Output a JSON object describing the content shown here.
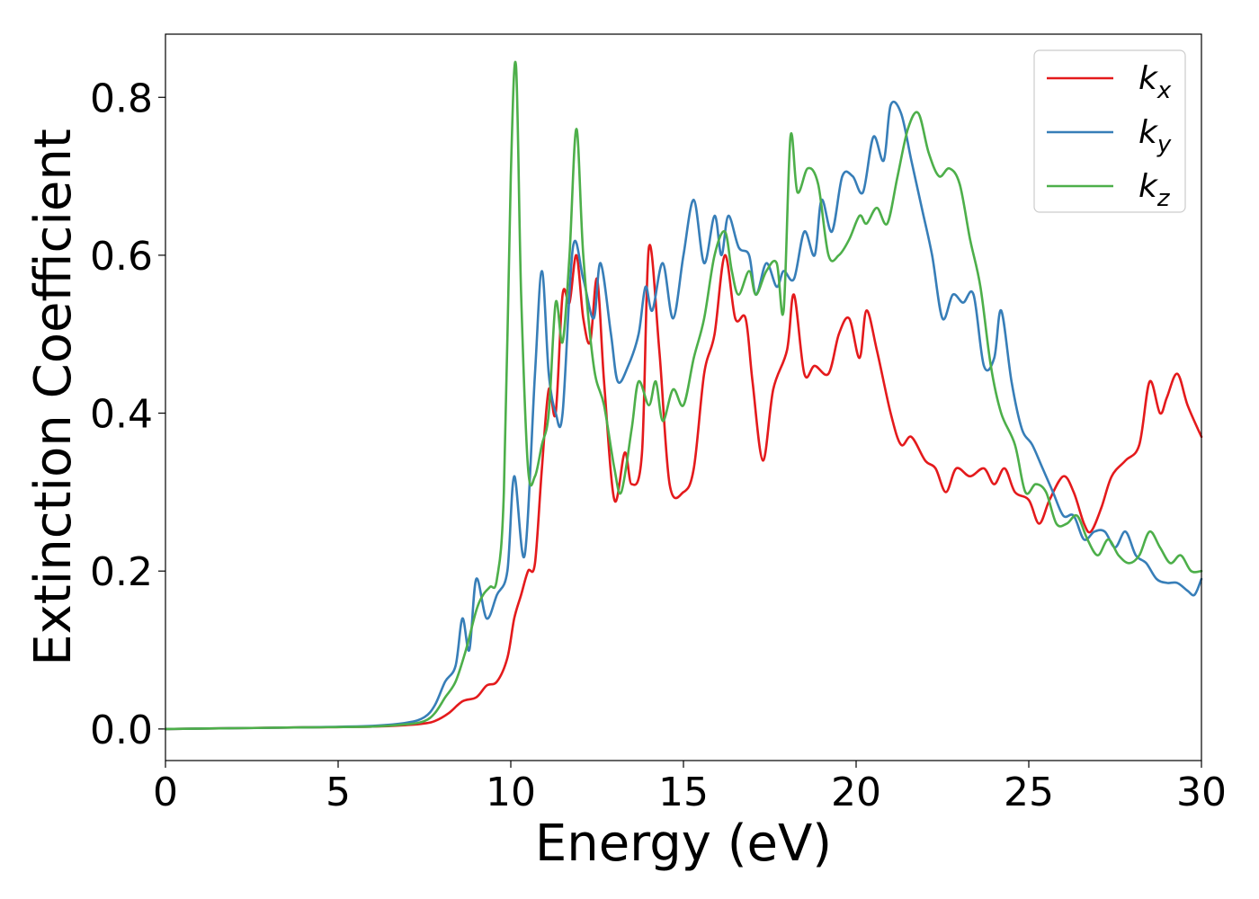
{
  "chart_data": {
    "type": "line",
    "xlabel": "Energy (eV)",
    "ylabel": "Extinction Coefficient",
    "xlim": [
      0,
      30
    ],
    "ylim": [
      -0.04,
      0.88
    ],
    "xticks": [
      0,
      5,
      10,
      15,
      20,
      25,
      30
    ],
    "xtick_labels": [
      "0",
      "5",
      "10",
      "15",
      "20",
      "25",
      "30"
    ],
    "yticks": [
      0.0,
      0.2,
      0.4,
      0.6,
      0.8
    ],
    "ytick_labels": [
      "0.0",
      "0.2",
      "0.4",
      "0.6",
      "0.8"
    ],
    "grid": false,
    "legend_position": "top-right",
    "series": [
      {
        "name": "k_x",
        "label_main": "k",
        "label_sub": "x",
        "color": "#e41a1c",
        "points": [
          [
            0,
            0
          ],
          [
            2,
            0.001
          ],
          [
            4,
            0.002
          ],
          [
            6,
            0.003
          ],
          [
            7,
            0.005
          ],
          [
            7.5,
            0.007
          ],
          [
            7.8,
            0.01
          ],
          [
            8.2,
            0.02
          ],
          [
            8.6,
            0.035
          ],
          [
            9.0,
            0.04
          ],
          [
            9.3,
            0.055
          ],
          [
            9.6,
            0.06
          ],
          [
            9.9,
            0.09
          ],
          [
            10.1,
            0.14
          ],
          [
            10.3,
            0.17
          ],
          [
            10.5,
            0.2
          ],
          [
            10.7,
            0.21
          ],
          [
            10.9,
            0.33
          ],
          [
            11.1,
            0.43
          ],
          [
            11.3,
            0.4
          ],
          [
            11.5,
            0.55
          ],
          [
            11.7,
            0.54
          ],
          [
            11.9,
            0.6
          ],
          [
            12.1,
            0.52
          ],
          [
            12.3,
            0.49
          ],
          [
            12.5,
            0.57
          ],
          [
            12.7,
            0.44
          ],
          [
            13.0,
            0.29
          ],
          [
            13.3,
            0.35
          ],
          [
            13.5,
            0.31
          ],
          [
            13.8,
            0.35
          ],
          [
            14.0,
            0.61
          ],
          [
            14.3,
            0.48
          ],
          [
            14.6,
            0.31
          ],
          [
            15.0,
            0.3
          ],
          [
            15.3,
            0.33
          ],
          [
            15.6,
            0.45
          ],
          [
            15.9,
            0.5
          ],
          [
            16.2,
            0.6
          ],
          [
            16.5,
            0.52
          ],
          [
            16.8,
            0.52
          ],
          [
            17.0,
            0.44
          ],
          [
            17.3,
            0.34
          ],
          [
            17.6,
            0.43
          ],
          [
            18.0,
            0.48
          ],
          [
            18.2,
            0.55
          ],
          [
            18.5,
            0.45
          ],
          [
            18.8,
            0.46
          ],
          [
            19.2,
            0.45
          ],
          [
            19.5,
            0.5
          ],
          [
            19.8,
            0.52
          ],
          [
            20.1,
            0.47
          ],
          [
            20.3,
            0.53
          ],
          [
            20.6,
            0.48
          ],
          [
            21.0,
            0.4
          ],
          [
            21.3,
            0.36
          ],
          [
            21.6,
            0.37
          ],
          [
            22.0,
            0.34
          ],
          [
            22.3,
            0.33
          ],
          [
            22.6,
            0.3
          ],
          [
            22.9,
            0.33
          ],
          [
            23.3,
            0.32
          ],
          [
            23.7,
            0.33
          ],
          [
            24.0,
            0.31
          ],
          [
            24.3,
            0.33
          ],
          [
            24.6,
            0.3
          ],
          [
            25.0,
            0.29
          ],
          [
            25.3,
            0.26
          ],
          [
            25.6,
            0.29
          ],
          [
            26.0,
            0.32
          ],
          [
            26.3,
            0.3
          ],
          [
            26.6,
            0.26
          ],
          [
            26.8,
            0.25
          ],
          [
            27.1,
            0.28
          ],
          [
            27.4,
            0.32
          ],
          [
            27.8,
            0.34
          ],
          [
            28.2,
            0.36
          ],
          [
            28.5,
            0.44
          ],
          [
            28.8,
            0.4
          ],
          [
            29.0,
            0.42
          ],
          [
            29.3,
            0.45
          ],
          [
            29.6,
            0.41
          ],
          [
            30,
            0.37
          ]
        ]
      },
      {
        "name": "k_y",
        "label_main": "k",
        "label_sub": "y",
        "color": "#377eb8",
        "points": [
          [
            0,
            0
          ],
          [
            2,
            0.001
          ],
          [
            4,
            0.002
          ],
          [
            6,
            0.004
          ],
          [
            7,
            0.008
          ],
          [
            7.5,
            0.015
          ],
          [
            7.8,
            0.03
          ],
          [
            8.1,
            0.06
          ],
          [
            8.4,
            0.08
          ],
          [
            8.6,
            0.14
          ],
          [
            8.8,
            0.1
          ],
          [
            9.0,
            0.19
          ],
          [
            9.3,
            0.14
          ],
          [
            9.6,
            0.17
          ],
          [
            9.9,
            0.2
          ],
          [
            10.1,
            0.32
          ],
          [
            10.4,
            0.22
          ],
          [
            10.7,
            0.45
          ],
          [
            10.9,
            0.58
          ],
          [
            11.1,
            0.45
          ],
          [
            11.3,
            0.4
          ],
          [
            11.5,
            0.4
          ],
          [
            11.8,
            0.61
          ],
          [
            12.1,
            0.57
          ],
          [
            12.4,
            0.52
          ],
          [
            12.6,
            0.59
          ],
          [
            12.9,
            0.5
          ],
          [
            13.1,
            0.44
          ],
          [
            13.4,
            0.46
          ],
          [
            13.7,
            0.5
          ],
          [
            13.9,
            0.56
          ],
          [
            14.1,
            0.53
          ],
          [
            14.4,
            0.59
          ],
          [
            14.7,
            0.52
          ],
          [
            15.0,
            0.6
          ],
          [
            15.3,
            0.67
          ],
          [
            15.6,
            0.59
          ],
          [
            15.9,
            0.65
          ],
          [
            16.1,
            0.6
          ],
          [
            16.3,
            0.65
          ],
          [
            16.6,
            0.61
          ],
          [
            16.9,
            0.6
          ],
          [
            17.1,
            0.55
          ],
          [
            17.4,
            0.59
          ],
          [
            17.7,
            0.56
          ],
          [
            17.9,
            0.58
          ],
          [
            18.2,
            0.57
          ],
          [
            18.5,
            0.63
          ],
          [
            18.8,
            0.6
          ],
          [
            19.0,
            0.67
          ],
          [
            19.3,
            0.63
          ],
          [
            19.6,
            0.7
          ],
          [
            19.9,
            0.7
          ],
          [
            20.2,
            0.68
          ],
          [
            20.5,
            0.75
          ],
          [
            20.8,
            0.72
          ],
          [
            21.0,
            0.79
          ],
          [
            21.3,
            0.78
          ],
          [
            21.6,
            0.72
          ],
          [
            21.9,
            0.66
          ],
          [
            22.2,
            0.6
          ],
          [
            22.5,
            0.52
          ],
          [
            22.8,
            0.55
          ],
          [
            23.1,
            0.54
          ],
          [
            23.4,
            0.55
          ],
          [
            23.7,
            0.46
          ],
          [
            24.0,
            0.47
          ],
          [
            24.2,
            0.53
          ],
          [
            24.5,
            0.44
          ],
          [
            24.8,
            0.38
          ],
          [
            25.1,
            0.36
          ],
          [
            25.4,
            0.33
          ],
          [
            25.7,
            0.3
          ],
          [
            26.0,
            0.27
          ],
          [
            26.3,
            0.27
          ],
          [
            26.6,
            0.24
          ],
          [
            26.9,
            0.25
          ],
          [
            27.2,
            0.25
          ],
          [
            27.5,
            0.23
          ],
          [
            27.8,
            0.25
          ],
          [
            28.1,
            0.22
          ],
          [
            28.4,
            0.21
          ],
          [
            28.7,
            0.19
          ],
          [
            29.0,
            0.185
          ],
          [
            29.3,
            0.185
          ],
          [
            29.6,
            0.175
          ],
          [
            29.8,
            0.17
          ],
          [
            30,
            0.19
          ]
        ]
      },
      {
        "name": "k_z",
        "label_main": "k",
        "label_sub": "z",
        "color": "#4daf4a",
        "points": [
          [
            0,
            0
          ],
          [
            2,
            0.001
          ],
          [
            4,
            0.002
          ],
          [
            6,
            0.003
          ],
          [
            7,
            0.006
          ],
          [
            7.5,
            0.01
          ],
          [
            7.8,
            0.02
          ],
          [
            8.1,
            0.04
          ],
          [
            8.4,
            0.06
          ],
          [
            8.7,
            0.1
          ],
          [
            9.0,
            0.15
          ],
          [
            9.2,
            0.17
          ],
          [
            9.4,
            0.18
          ],
          [
            9.6,
            0.19
          ],
          [
            9.8,
            0.3
          ],
          [
            10.0,
            0.7
          ],
          [
            10.15,
            0.84
          ],
          [
            10.3,
            0.55
          ],
          [
            10.5,
            0.33
          ],
          [
            10.7,
            0.32
          ],
          [
            10.9,
            0.36
          ],
          [
            11.1,
            0.4
          ],
          [
            11.3,
            0.54
          ],
          [
            11.5,
            0.49
          ],
          [
            11.7,
            0.6
          ],
          [
            11.9,
            0.76
          ],
          [
            12.1,
            0.6
          ],
          [
            12.4,
            0.46
          ],
          [
            12.7,
            0.41
          ],
          [
            13.0,
            0.33
          ],
          [
            13.2,
            0.3
          ],
          [
            13.5,
            0.38
          ],
          [
            13.7,
            0.44
          ],
          [
            14.0,
            0.41
          ],
          [
            14.2,
            0.44
          ],
          [
            14.4,
            0.39
          ],
          [
            14.7,
            0.43
          ],
          [
            15.0,
            0.41
          ],
          [
            15.3,
            0.47
          ],
          [
            15.6,
            0.52
          ],
          [
            15.9,
            0.6
          ],
          [
            16.2,
            0.63
          ],
          [
            16.4,
            0.58
          ],
          [
            16.6,
            0.55
          ],
          [
            16.9,
            0.58
          ],
          [
            17.1,
            0.55
          ],
          [
            17.4,
            0.58
          ],
          [
            17.7,
            0.59
          ],
          [
            17.9,
            0.53
          ],
          [
            18.1,
            0.75
          ],
          [
            18.3,
            0.68
          ],
          [
            18.6,
            0.71
          ],
          [
            18.9,
            0.69
          ],
          [
            19.2,
            0.6
          ],
          [
            19.5,
            0.6
          ],
          [
            19.8,
            0.62
          ],
          [
            20.1,
            0.65
          ],
          [
            20.3,
            0.64
          ],
          [
            20.6,
            0.66
          ],
          [
            20.9,
            0.64
          ],
          [
            21.2,
            0.7
          ],
          [
            21.5,
            0.76
          ],
          [
            21.8,
            0.78
          ],
          [
            22.1,
            0.73
          ],
          [
            22.4,
            0.7
          ],
          [
            22.7,
            0.71
          ],
          [
            23.0,
            0.69
          ],
          [
            23.3,
            0.62
          ],
          [
            23.6,
            0.56
          ],
          [
            23.9,
            0.46
          ],
          [
            24.2,
            0.4
          ],
          [
            24.6,
            0.36
          ],
          [
            24.9,
            0.3
          ],
          [
            25.2,
            0.31
          ],
          [
            25.5,
            0.3
          ],
          [
            25.8,
            0.26
          ],
          [
            26.1,
            0.26
          ],
          [
            26.4,
            0.27
          ],
          [
            26.7,
            0.24
          ],
          [
            27.0,
            0.22
          ],
          [
            27.3,
            0.24
          ],
          [
            27.6,
            0.22
          ],
          [
            27.9,
            0.21
          ],
          [
            28.2,
            0.22
          ],
          [
            28.5,
            0.25
          ],
          [
            28.8,
            0.23
          ],
          [
            29.1,
            0.21
          ],
          [
            29.4,
            0.22
          ],
          [
            29.7,
            0.2
          ],
          [
            30,
            0.2
          ]
        ]
      }
    ]
  }
}
